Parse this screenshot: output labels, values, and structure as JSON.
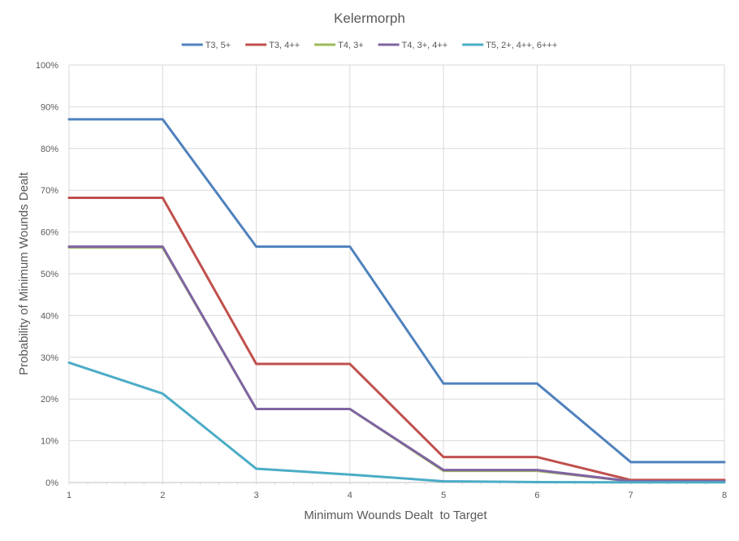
{
  "chart_data": {
    "type": "line",
    "title": "Kelermorph",
    "xlabel": "Minimum Wounds Dealt  to Target",
    "ylabel": "Probability of Minimum Wounds Dealt",
    "x": [
      1,
      2,
      3,
      4,
      5,
      6,
      7,
      8
    ],
    "xlim": [
      1,
      8
    ],
    "ylim": [
      0,
      100
    ],
    "yticks": [
      "0%",
      "10%",
      "20%",
      "30%",
      "40%",
      "50%",
      "60%",
      "70%",
      "80%",
      "90%",
      "100%"
    ],
    "grid": true,
    "legend_position": "top",
    "series": [
      {
        "name": "T3, 5+",
        "color": "#4F81BD",
        "values": [
          87,
          87,
          56.5,
          56.5,
          23.7,
          23.7,
          4.9,
          4.9
        ]
      },
      {
        "name": "T3, 4++",
        "color": "#C0504D",
        "values": [
          68.2,
          68.2,
          28.4,
          28.4,
          6.1,
          6.1,
          0.6,
          0.6
        ]
      },
      {
        "name": "T4, 3+",
        "color": "#9BBB59",
        "values": [
          56.3,
          56.3,
          17.6,
          17.6,
          2.8,
          2.8,
          0.3,
          0.3
        ]
      },
      {
        "name": "T4, 3+, 4++",
        "color": "#8064A2",
        "values": [
          56.5,
          56.5,
          17.6,
          17.6,
          3.0,
          3.0,
          0.3,
          0.3
        ]
      },
      {
        "name": "T5, 2+, 4++, 6+++",
        "color": "#4BACC6",
        "values": [
          28.7,
          21.3,
          3.3,
          1.9,
          0.3,
          0.1,
          0.05,
          0.05
        ]
      }
    ]
  }
}
